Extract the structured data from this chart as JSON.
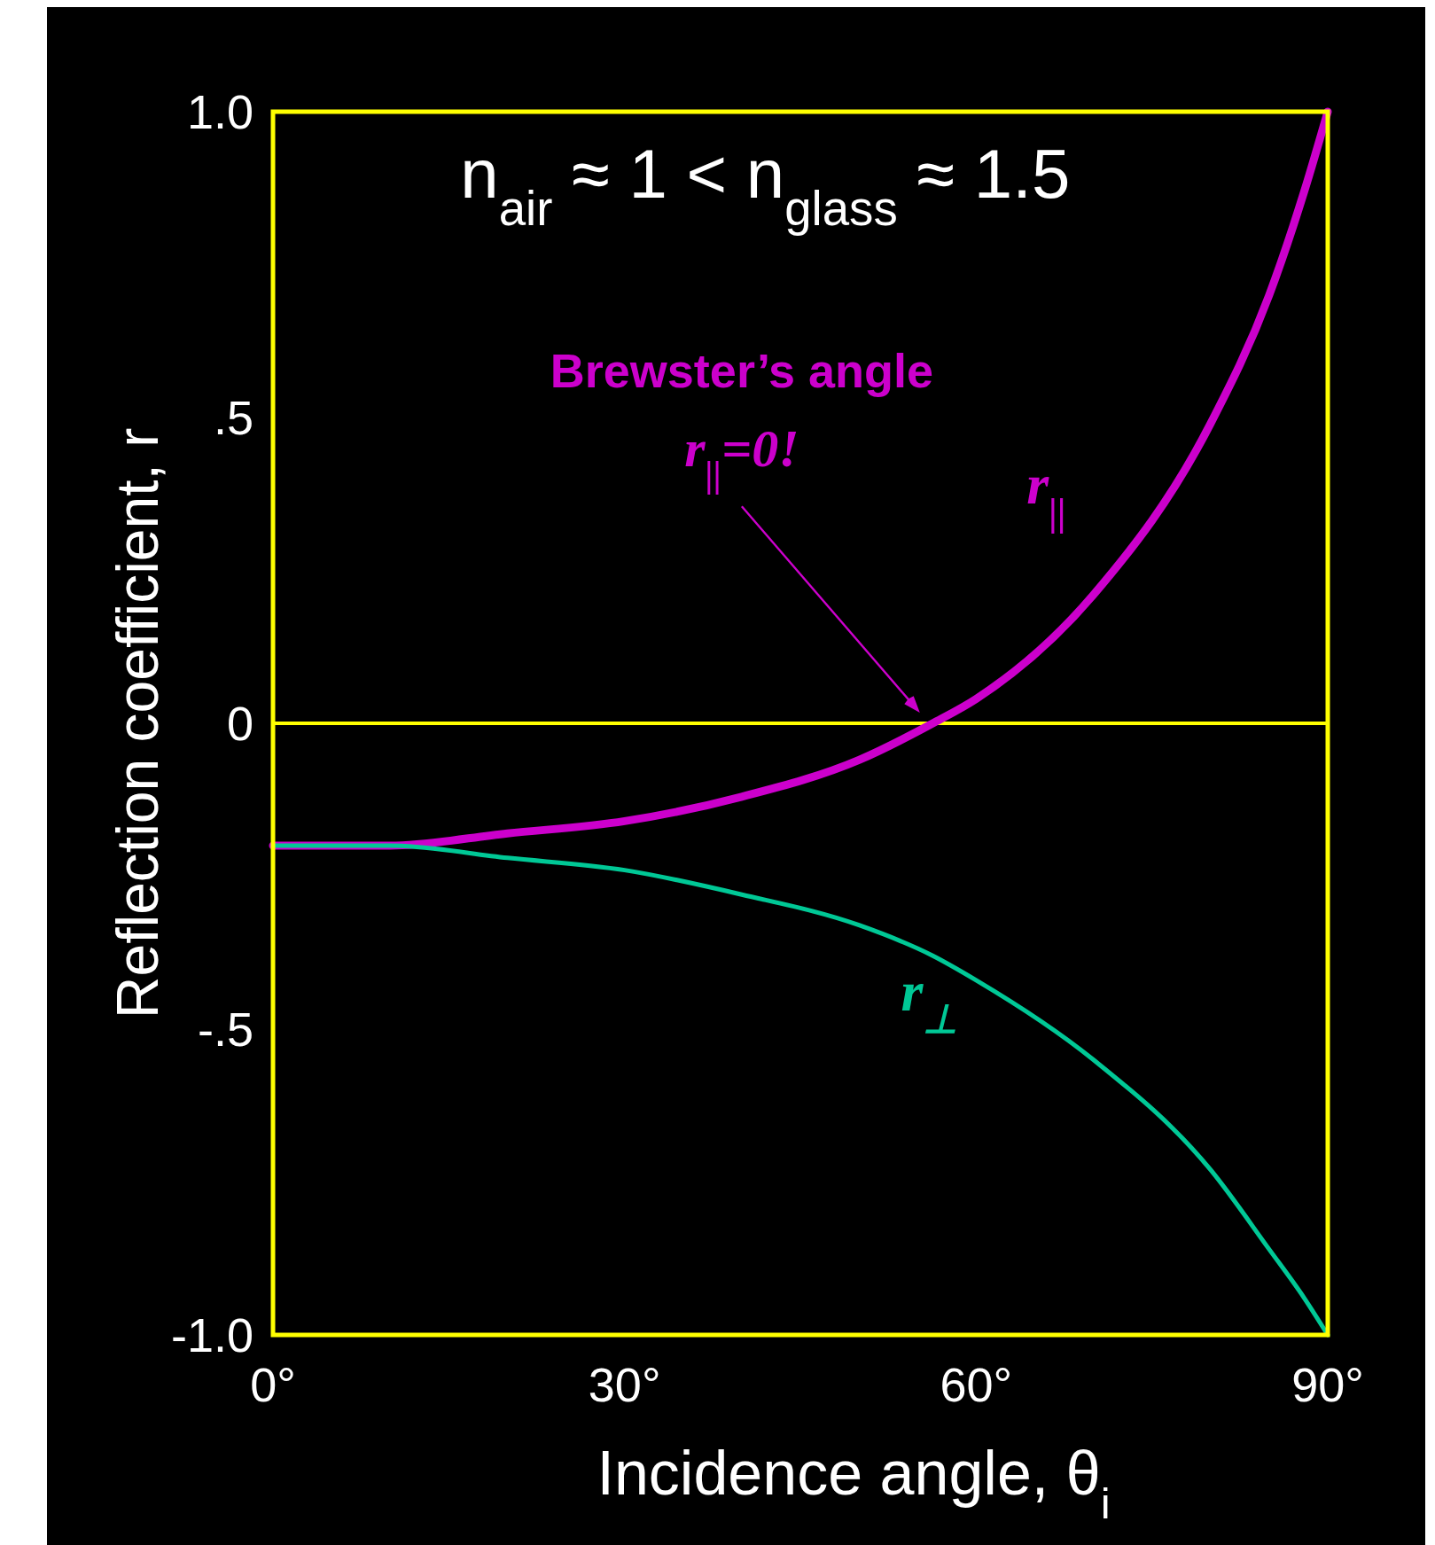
{
  "chart_data": {
    "type": "line",
    "xlabel": "Incidence angle, θ$_{i}$",
    "ylabel": "Reflection coefficient, r",
    "x": [
      0,
      10,
      20,
      30,
      40,
      50,
      56.3,
      60,
      70,
      80,
      85,
      88,
      90
    ],
    "series": [
      {
        "name": "r$_{||}$",
        "color": "#cc00cc",
        "values": [
          -0.2,
          -0.2,
          -0.18,
          -0.16,
          -0.12,
          -0.06,
          0,
          0.04,
          0.21,
          0.49,
          0.7,
          0.87,
          1
        ]
      },
      {
        "name": "r$_{⊥}$",
        "color": "#00c896",
        "values": [
          -0.2,
          -0.2,
          -0.22,
          -0.24,
          -0.28,
          -0.33,
          -0.38,
          -0.42,
          -0.55,
          -0.73,
          -0.86,
          -0.94,
          -1
        ]
      }
    ],
    "xlim": [
      0,
      90
    ],
    "xticks": [
      {
        "value": 0,
        "label": "0°"
      },
      {
        "value": 30,
        "label": "30°"
      },
      {
        "value": 60,
        "label": "60°"
      },
      {
        "value": 90,
        "label": "90°"
      }
    ],
    "ylim": [
      -1,
      1
    ],
    "yticks": [
      {
        "value": -1,
        "label": "-1.0"
      },
      {
        "value": -0.5,
        "label": "-.5"
      },
      0,
      {
        "value": 0.5,
        "label": ".5"
      },
      {
        "value": 1,
        "label": "1.0"
      }
    ],
    "grid": false,
    "marker": "none",
    "line_style": "solid",
    "ref_lines": [
      {
        "axis": "y",
        "value": 0,
        "color": "#ffff00"
      }
    ],
    "annotations": [
      "n$_{air}$ ≈ 1  <  n$_{glass}$ ≈ 1.5",
      "Brewster’s angle",
      "r$_{||}$=0!"
    ]
  }
}
